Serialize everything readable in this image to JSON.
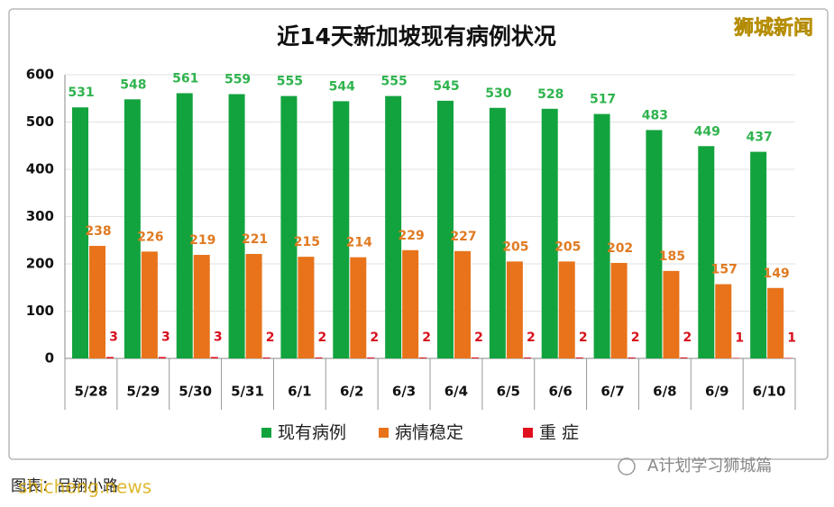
{
  "chart_data": {
    "type": "bar",
    "title": "近14天新加坡现有病例状况",
    "categories": [
      "5/28",
      "5/29",
      "5/30",
      "5/31",
      "6/1",
      "6/2",
      "6/3",
      "6/4",
      "6/5",
      "6/6",
      "6/7",
      "6/8",
      "6/9",
      "6/10"
    ],
    "series": [
      {
        "name": "现有病例",
        "color": "#12a33e",
        "label_color": "#2fb34e",
        "values": [
          531,
          548,
          561,
          559,
          555,
          544,
          555,
          545,
          530,
          528,
          517,
          483,
          449,
          437
        ]
      },
      {
        "name": "病情稳定",
        "color": "#e8731b",
        "label_color": "#e07a22",
        "values": [
          238,
          226,
          219,
          221,
          215,
          214,
          229,
          227,
          205,
          205,
          202,
          185,
          157,
          149
        ]
      },
      {
        "name": "重 症",
        "color": "#e0101e",
        "label_color": "#d8101c",
        "values": [
          3,
          3,
          3,
          2,
          2,
          2,
          2,
          2,
          2,
          2,
          2,
          2,
          1,
          1
        ]
      }
    ],
    "ylim": [
      0,
      600
    ],
    "yticks": [
      0,
      100,
      200,
      300,
      400,
      500,
      600
    ],
    "grid": true,
    "watermark": "狮城新闻",
    "caption": "图表：吕翔小路",
    "site": "shicheng.news",
    "account": "A计划学习狮城篇"
  }
}
